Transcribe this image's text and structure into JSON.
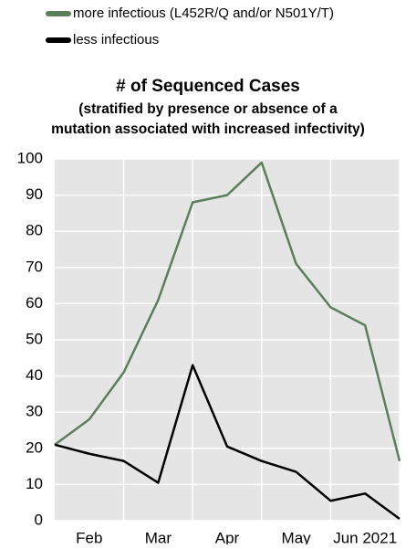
{
  "chart_data": {
    "type": "line",
    "title": "# of Sequenced Cases",
    "subtitle": [
      "(stratified by presence or absence of a",
      "mutation associated with increased infectivity)"
    ],
    "categories": [
      null,
      "Feb",
      null,
      "Mar",
      null,
      "Apr",
      null,
      "May",
      null,
      "Jun 2021",
      null
    ],
    "series": [
      {
        "name": "more infectious (L452R/Q and/or N501Y/T)",
        "color": "#5b7f5b",
        "values": [
          21,
          28,
          41,
          61,
          88,
          90,
          99,
          71,
          59,
          54,
          16.5
        ]
      },
      {
        "name": "less infectious",
        "color": "#000000",
        "values": [
          21,
          18.5,
          16.5,
          10.5,
          43,
          20.5,
          16.5,
          13.5,
          5.5,
          7.5,
          0.5
        ]
      }
    ],
    "ylim": [
      0,
      100
    ],
    "yticks": [
      0,
      10,
      20,
      30,
      40,
      50,
      60,
      70,
      80,
      90,
      100
    ],
    "grid": true
  }
}
